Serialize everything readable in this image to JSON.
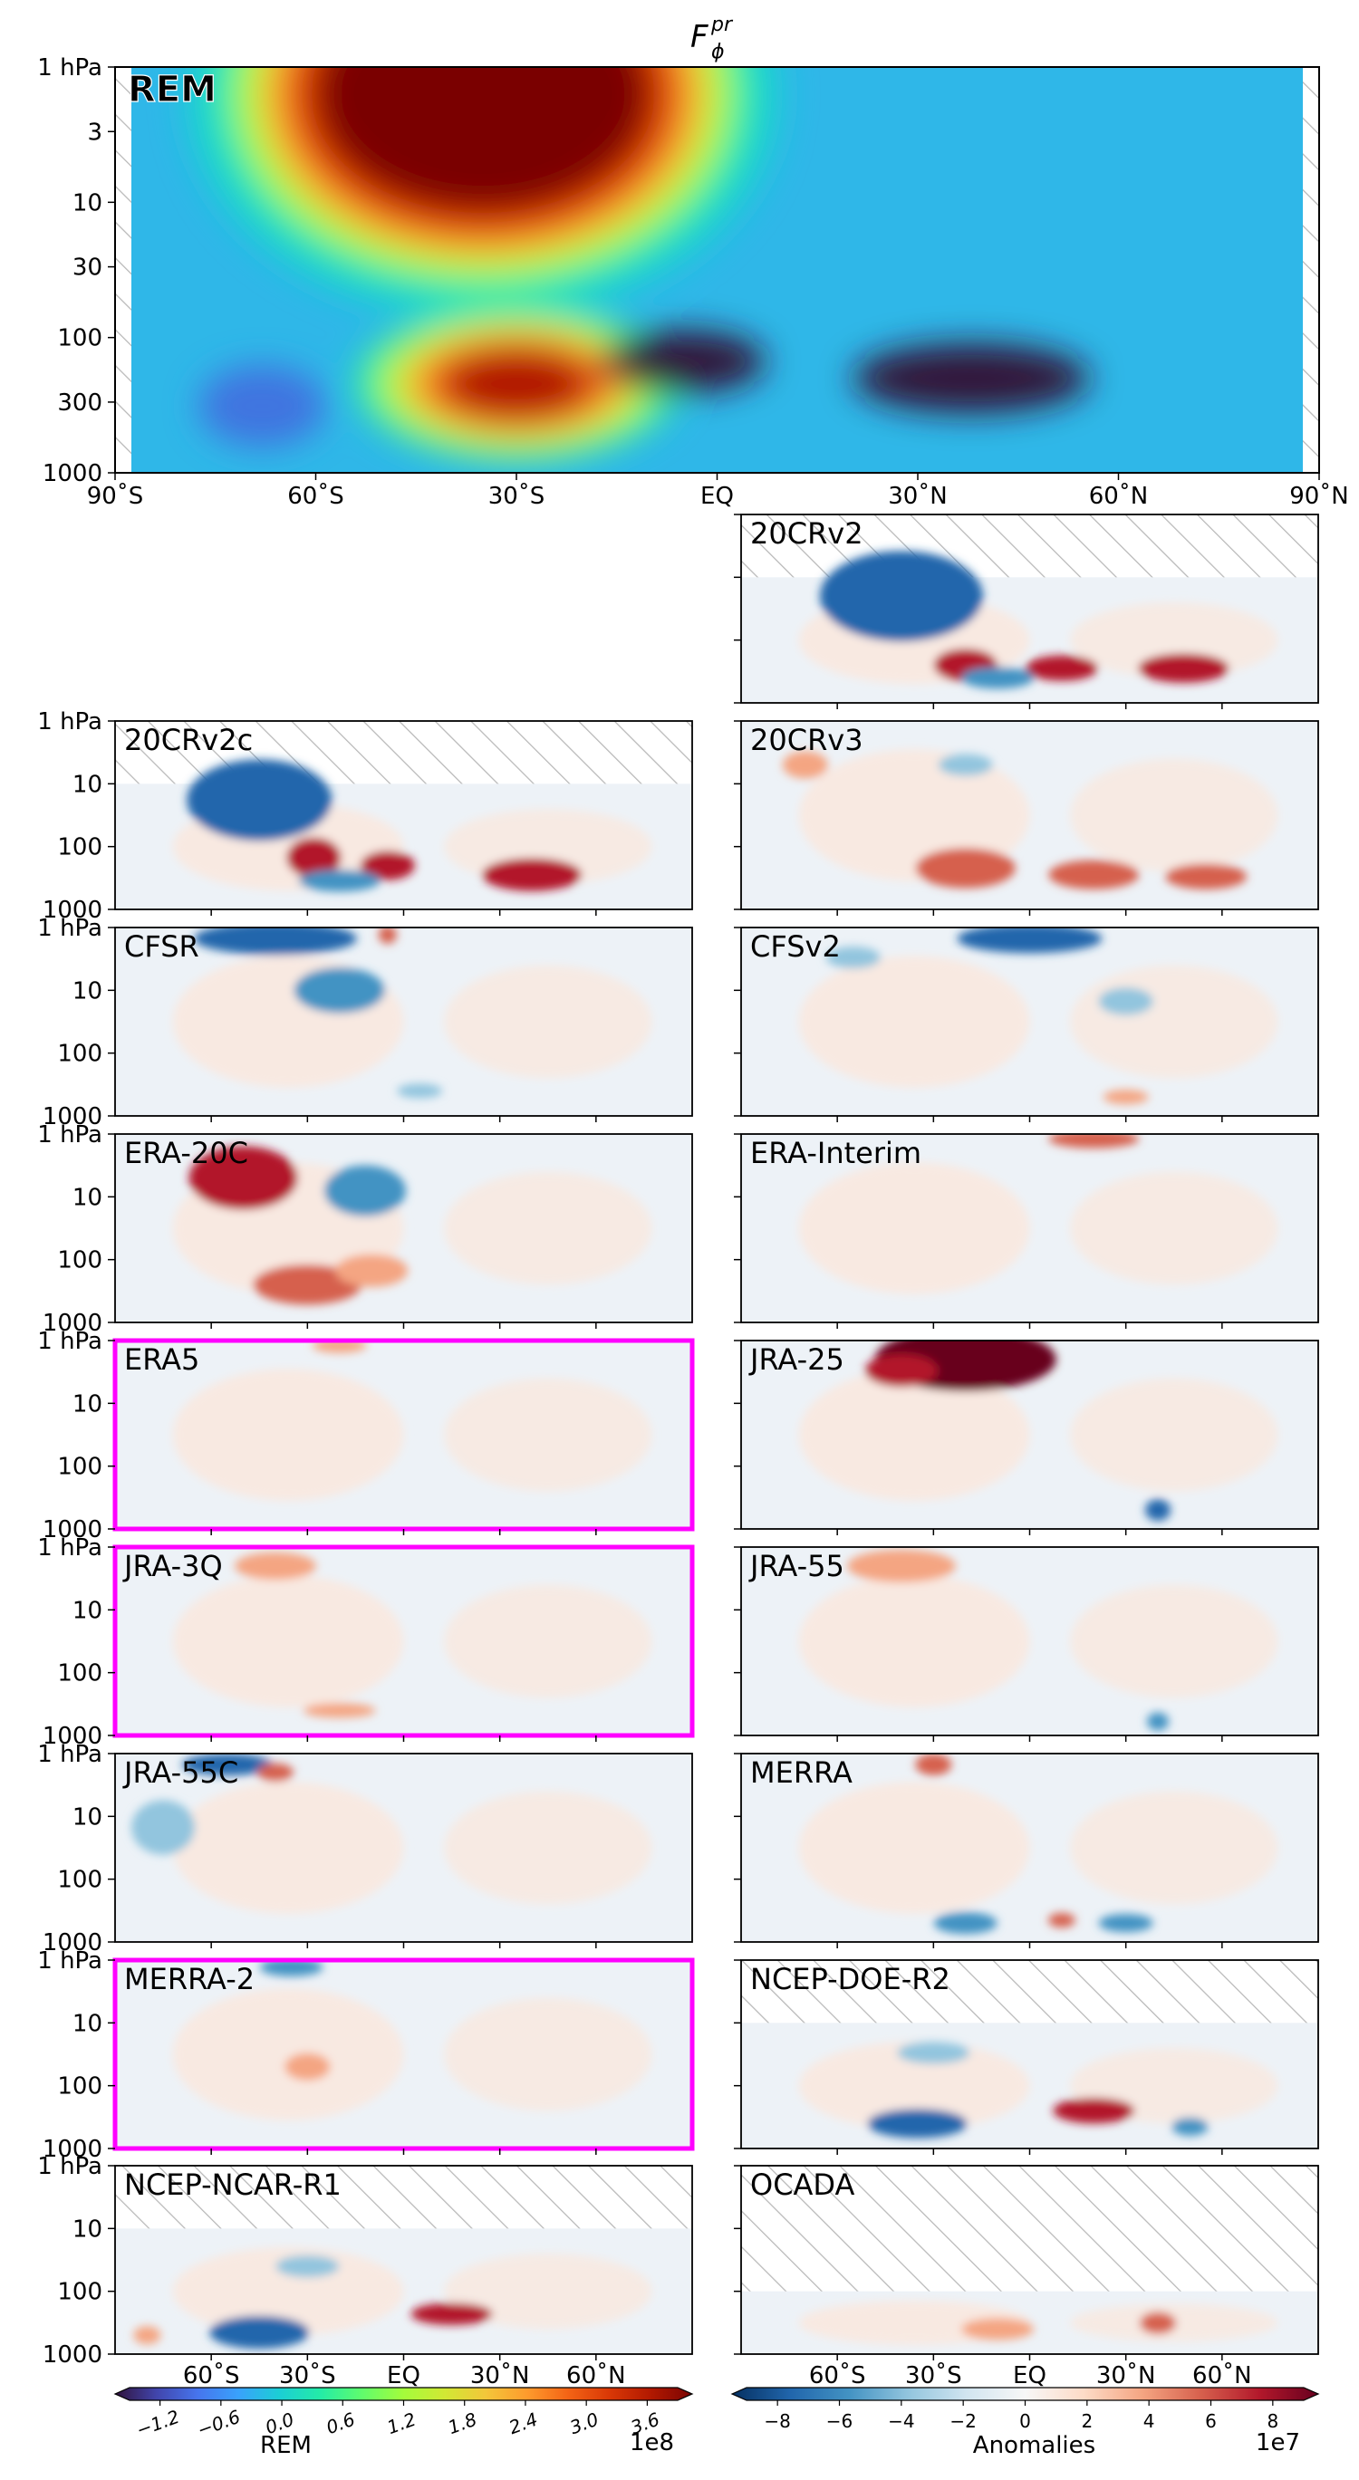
{
  "chart_data": {
    "type": "heatmap",
    "title": "F",
    "title_sub": "ϕ",
    "title_sup": "pr",
    "x_ticks": [
      "90˚S",
      "60˚S",
      "30˚S",
      "EQ",
      "30˚N",
      "60˚N",
      "90˚N"
    ],
    "x_ticks_bottom": [
      "60˚S",
      "30˚S",
      "EQ",
      "30˚N",
      "60˚N"
    ],
    "xlim": [
      -90,
      90
    ],
    "y_scale": "log",
    "ylim": [
      1000,
      1
    ],
    "y_ticks_main": [
      "1 hPa",
      "3",
      "10",
      "30",
      "100",
      "300",
      "1000"
    ],
    "y_ticks_small": [
      "1 hPa",
      "10",
      "100",
      "1000"
    ],
    "main_panel": {
      "label": "REM",
      "features": [
        {
          "kind": "max",
          "lat": -35,
          "p": 2,
          "value": 380000000.0
        },
        {
          "kind": "max",
          "lat": -30,
          "p": 200,
          "value": 320000000.0
        },
        {
          "kind": "min",
          "lat": -5,
          "p": 150,
          "value": -120000000.0
        },
        {
          "kind": "min",
          "lat": 38,
          "p": 200,
          "value": -120000000.0
        },
        {
          "kind": "min",
          "lat": -68,
          "p": 300,
          "value": -40000000.0
        }
      ]
    },
    "anomaly_panels": [
      {
        "label": "20CRv2",
        "top_p": 10
      },
      {
        "label": "20CRv2c",
        "top_p": 10
      },
      {
        "label": "20CRv3",
        "top_p": 1
      },
      {
        "label": "CFSR",
        "top_p": 1
      },
      {
        "label": "CFSv2",
        "top_p": 1
      },
      {
        "label": "ERA-20C",
        "top_p": 1
      },
      {
        "label": "ERA-Interim",
        "top_p": 1
      },
      {
        "label": "ERA5",
        "top_p": 1,
        "highlighted": true
      },
      {
        "label": "JRA-25",
        "top_p": 1
      },
      {
        "label": "JRA-3Q",
        "top_p": 1,
        "highlighted": true
      },
      {
        "label": "JRA-55",
        "top_p": 1
      },
      {
        "label": "JRA-55C",
        "top_p": 1
      },
      {
        "label": "MERRA",
        "top_p": 1
      },
      {
        "label": "MERRA-2",
        "top_p": 1,
        "highlighted": true
      },
      {
        "label": "NCEP-DOE-R2",
        "top_p": 10
      },
      {
        "label": "NCEP-NCAR-R1",
        "top_p": 10
      },
      {
        "label": "OCADA",
        "top_p": 100
      }
    ],
    "colorbar_rem": {
      "label": "REM",
      "multiplier": "1e8",
      "ticks": [
        "−1.2",
        "−0.6",
        "0.0",
        "0.6",
        "1.2",
        "1.8",
        "2.4",
        "3.0",
        "3.6"
      ],
      "range": [
        -1.5,
        3.9
      ],
      "colormap": "turbo"
    },
    "colorbar_anom": {
      "label": "Anomalies",
      "multiplier": "1e7",
      "ticks": [
        "−8",
        "−6",
        "−4",
        "−2",
        "0",
        "2",
        "4",
        "6",
        "8"
      ],
      "range": [
        -9,
        9
      ],
      "colormap": "RdBu_r"
    },
    "highlight_color": "#ff00ff",
    "hatch_color": "#b8b8b8"
  }
}
